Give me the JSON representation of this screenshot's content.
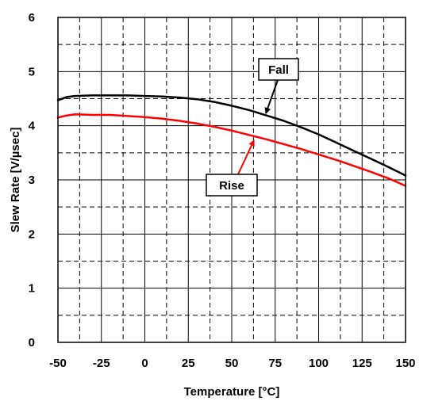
{
  "chart_data": {
    "type": "line",
    "title": "",
    "xlabel": "Temperature [°C]",
    "ylabel": "Slew Rate [V/µsec]",
    "xlim": [
      -50,
      150
    ],
    "ylim": [
      0,
      6
    ],
    "x_ticks": [
      "-50",
      "-25",
      "0",
      "25",
      "50",
      "75",
      "100",
      "125",
      "150"
    ],
    "y_ticks": [
      "0",
      "1",
      "2",
      "3",
      "4",
      "5",
      "6"
    ],
    "grid": true,
    "grid_style": "major solid, minor dashed",
    "series": [
      {
        "name": "Fall",
        "color": "#000000",
        "x": [
          -50,
          -45,
          -40,
          -30,
          -20,
          -10,
          0,
          10,
          20,
          30,
          40,
          50,
          60,
          70,
          80,
          90,
          100,
          110,
          120,
          130,
          140,
          150
        ],
        "y": [
          4.47,
          4.53,
          4.55,
          4.56,
          4.56,
          4.56,
          4.55,
          4.54,
          4.52,
          4.49,
          4.44,
          4.37,
          4.29,
          4.19,
          4.09,
          3.97,
          3.84,
          3.69,
          3.54,
          3.39,
          3.24,
          3.08
        ]
      },
      {
        "name": "Rise",
        "color": "#ff0000",
        "x": [
          -50,
          -45,
          -40,
          -30,
          -20,
          -10,
          0,
          10,
          20,
          30,
          40,
          50,
          60,
          70,
          80,
          90,
          100,
          110,
          120,
          130,
          140,
          150
        ],
        "y": [
          4.15,
          4.19,
          4.21,
          4.2,
          4.2,
          4.18,
          4.16,
          4.13,
          4.09,
          4.04,
          3.98,
          3.91,
          3.83,
          3.75,
          3.66,
          3.57,
          3.47,
          3.37,
          3.26,
          3.15,
          3.03,
          2.89
        ]
      }
    ],
    "annotations": [
      {
        "text": "Fall",
        "points_to_series": "Fall"
      },
      {
        "text": "Rise",
        "points_to_series": "Rise"
      }
    ]
  }
}
